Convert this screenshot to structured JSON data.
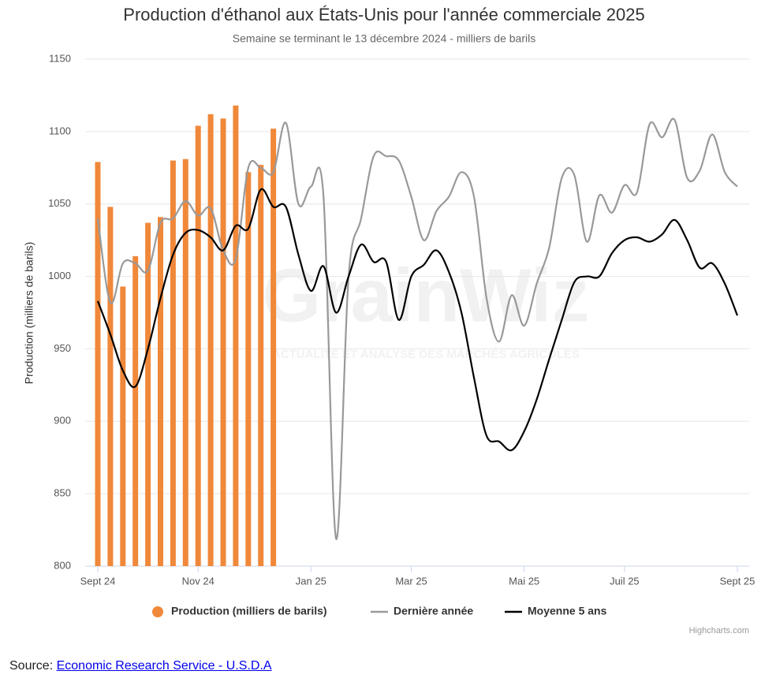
{
  "chart_data": {
    "type": "combo",
    "title": "Production d'éthanol aux États-Unis pour l'année commerciale 2025",
    "subtitle": "Semaine se terminant le 13 décembre 2024 - milliers de barils",
    "y_axis_label": "Production (milliers de barils)",
    "watermark": "GrainWiz",
    "watermark_tagline": "ACTUALITÉ ET ANALYSE DES MARCHÉS AGRICOLES",
    "credits": "Highcharts.com",
    "source_label": "Source:",
    "source_link": "Economic Research Service - U.S.D.A",
    "categories": [
      "Sept 24",
      null,
      null,
      null,
      null,
      null,
      null,
      null,
      "Nov 24",
      null,
      null,
      null,
      null,
      null,
      null,
      null,
      null,
      "Jan 25",
      null,
      null,
      null,
      null,
      null,
      null,
      null,
      "Mar 25",
      null,
      null,
      null,
      null,
      null,
      null,
      null,
      null,
      "Mai 25",
      null,
      null,
      null,
      null,
      null,
      null,
      null,
      "Juil 25",
      null,
      null,
      null,
      null,
      null,
      null,
      null,
      null,
      "Sept 25"
    ],
    "ylim": [
      800,
      1150
    ],
    "yticks": [
      800,
      850,
      900,
      950,
      1000,
      1050,
      1100,
      1150
    ],
    "grid": true,
    "legend": "bottom",
    "series": [
      {
        "name": "Production (milliers de barils)",
        "type": "bar",
        "color": "#f0883a",
        "values": [
          1079,
          1048,
          993,
          1014,
          1037,
          1041,
          1080,
          1081,
          1104,
          1112,
          1109,
          1118,
          1072,
          1077,
          1102,
          null,
          null,
          null,
          null,
          null,
          null,
          null,
          null,
          null,
          null,
          null,
          null,
          null,
          null,
          null,
          null,
          null,
          null,
          null,
          null,
          null,
          null,
          null,
          null,
          null,
          null,
          null,
          null,
          null,
          null,
          null,
          null,
          null,
          null,
          null,
          null,
          null
        ]
      },
      {
        "name": "Dernière année",
        "type": "line",
        "color": "#999999",
        "values": [
          1040,
          982,
          1009,
          1009,
          1004,
          1037,
          1040,
          1052,
          1042,
          1047,
          1018,
          1012,
          1075,
          1075,
          1072,
          1106,
          1050,
          1062,
          1055,
          819,
          1000,
          1040,
          1083,
          1083,
          1080,
          1055,
          1025,
          1045,
          1055,
          1072,
          1055,
          985,
          955,
          987,
          966,
          995,
          1020,
          1068,
          1070,
          1024,
          1056,
          1044,
          1063,
          1058,
          1105,
          1096,
          1108,
          1068,
          1073,
          1098,
          1072,
          1062
        ]
      },
      {
        "name": "Moyenne 5 ans",
        "type": "line",
        "color": "#000000",
        "values": [
          983,
          960,
          935,
          924,
          950,
          985,
          1015,
          1030,
          1032,
          1027,
          1018,
          1035,
          1033,
          1060,
          1048,
          1048,
          1015,
          990,
          1007,
          975,
          1000,
          1022,
          1010,
          1010,
          970,
          1000,
          1008,
          1018,
          1003,
          975,
          930,
          890,
          886,
          880,
          893,
          915,
          943,
          970,
          996,
          1000,
          1000,
          1016,
          1025,
          1027,
          1024,
          1029,
          1039,
          1025,
          1006,
          1009,
          995,
          973
        ]
      }
    ]
  }
}
